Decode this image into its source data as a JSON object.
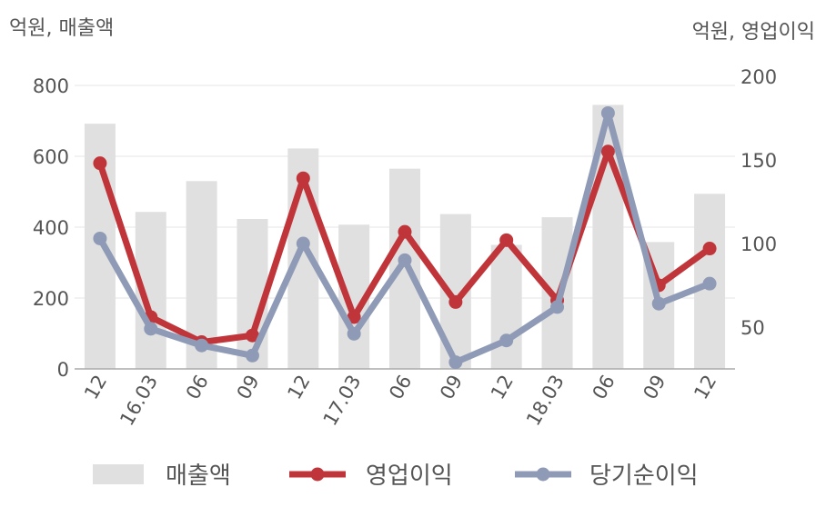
{
  "chart_data": {
    "type": "bar+line",
    "left_axis_unit": "억원, 매출액",
    "right_axis_unit": "억원, 영업이익",
    "categories": [
      "12",
      "16.03",
      "06",
      "09",
      "12",
      "17.03",
      "06",
      "09",
      "12",
      "18.03",
      "06",
      "09",
      "12"
    ],
    "left_ylim": [
      0,
      800
    ],
    "left_ticks": [
      "0",
      "200",
      "400",
      "600",
      "800"
    ],
    "right_ylim": [
      25,
      200
    ],
    "right_ticks": [
      "50",
      "100",
      "150",
      "200"
    ],
    "series": [
      {
        "name": "매출액",
        "type": "bar",
        "axis": "left",
        "color": "#e0e0e0",
        "values": [
          692,
          443,
          530,
          423,
          622,
          407,
          565,
          437,
          350,
          428,
          745,
          358,
          494
        ]
      },
      {
        "name": "영업이익",
        "type": "line",
        "axis": "right",
        "color": "#c0353a",
        "values": [
          148,
          56,
          41,
          45,
          139,
          56,
          107,
          65,
          102,
          66,
          155,
          75,
          97
        ]
      },
      {
        "name": "당기순이익",
        "type": "line",
        "axis": "right",
        "color": "#8f9bb6",
        "values": [
          103,
          49,
          39,
          33,
          100,
          46,
          90,
          29,
          42,
          62,
          178,
          64,
          76
        ]
      }
    ],
    "grid": true,
    "legend_position": "bottom"
  }
}
